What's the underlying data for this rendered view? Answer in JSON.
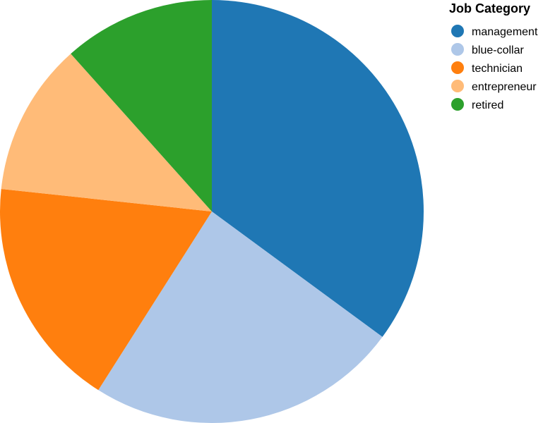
{
  "chart_data": {
    "type": "pie",
    "legend": {
      "title": "Job Category",
      "position": "top-right"
    },
    "slices": [
      {
        "label": "management",
        "value": 35.1,
        "color": "#1f77b4"
      },
      {
        "label": "blue-collar",
        "value": 23.9,
        "color": "#aec7e8"
      },
      {
        "label": "technician",
        "value": 17.7,
        "color": "#ff7f0e"
      },
      {
        "label": "entrepreneur",
        "value": 11.7,
        "color": "#ffbb78"
      },
      {
        "label": "retired",
        "value": 11.6,
        "color": "#2ca02c"
      }
    ]
  }
}
